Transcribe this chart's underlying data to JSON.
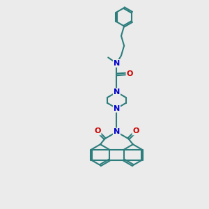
{
  "bg_color": "#ebebeb",
  "bond_color": "#2d7d7d",
  "N_color": "#0000cc",
  "O_color": "#cc0000",
  "lw": 1.5,
  "fs": 8,
  "fig_w": 3.0,
  "fig_h": 3.0,
  "xlim": [
    0,
    10
  ],
  "ylim": [
    0,
    16
  ]
}
